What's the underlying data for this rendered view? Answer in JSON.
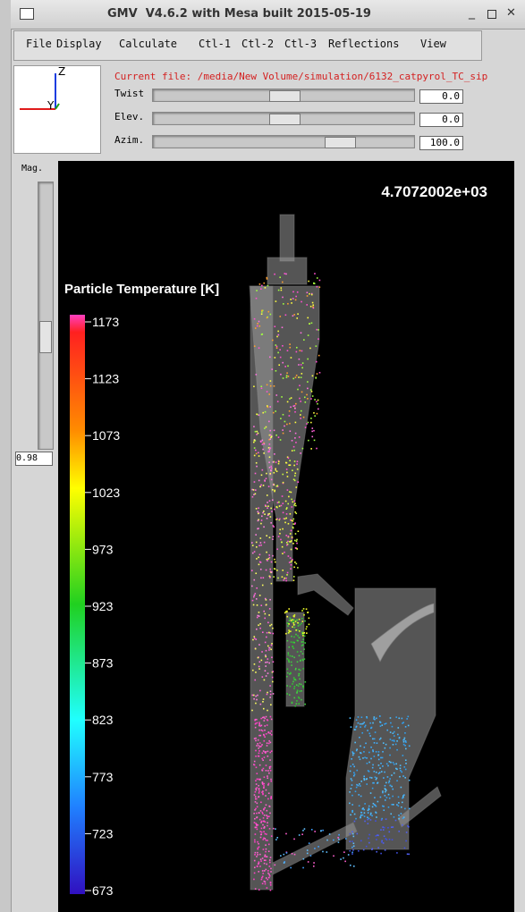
{
  "window": {
    "title": "GMV  V4.6.2 with Mesa built 2015-05-19"
  },
  "menu": [
    "File",
    "Display",
    "Calculate",
    "Ctl-1",
    "Ctl-2",
    "Ctl-3",
    "Reflections",
    "View"
  ],
  "axes_widget": {
    "labels": [
      "Z",
      "Y"
    ]
  },
  "controls": {
    "current_file": "Current file: /media/New Volume/simulation/6132_catpyrol_TC_sip",
    "sliders": [
      {
        "label": "Twist",
        "value": "0.0"
      },
      {
        "label": "Elev.",
        "value": "0.0"
      },
      {
        "label": "Azim.",
        "value": "100.0"
      }
    ]
  },
  "magnification": {
    "label": "Mag.",
    "value": "0.98"
  },
  "viewer": {
    "time": "4.7072002e+03",
    "colorbar": {
      "title": "Particle Temperature [K]",
      "ticks": [
        1173,
        1123,
        1073,
        1023,
        973,
        923,
        873,
        823,
        773,
        723,
        673
      ]
    }
  }
}
